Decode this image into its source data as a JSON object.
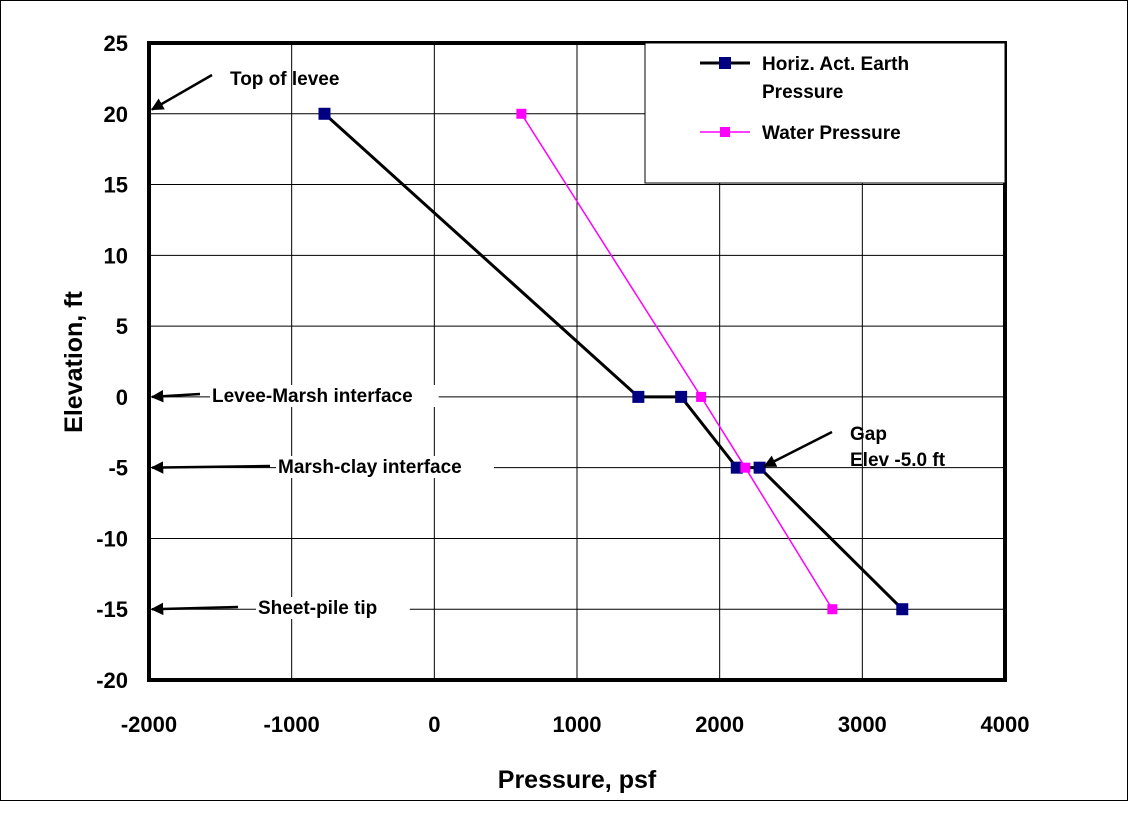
{
  "chart_data": {
    "type": "line",
    "xlabel": "Pressure, psf",
    "ylabel": "Elevation, ft",
    "xlim": [
      -2000,
      4000
    ],
    "ylim": [
      -20,
      25
    ],
    "xticks": [
      -2000,
      -1000,
      0,
      1000,
      2000,
      3000,
      4000
    ],
    "yticks": [
      25,
      20,
      15,
      10,
      5,
      0,
      -5,
      -10,
      -15,
      -20
    ],
    "grid": true,
    "legend_position": "top-right",
    "series": [
      {
        "name": "Horiz. Act. Earth Pressure",
        "name_lines": [
          "Horiz. Act. Earth",
          "Pressure"
        ],
        "color": "#000000",
        "marker_color": "#000080",
        "x": [
          -770,
          1430,
          1730,
          2120,
          2280,
          3280
        ],
        "y": [
          20,
          0,
          0,
          -5,
          -5,
          -15
        ]
      },
      {
        "name": "Water Pressure",
        "name_lines": [
          "Water Pressure"
        ],
        "color": "#ff00ff",
        "marker_color": "#ff00ff",
        "x": [
          610,
          1870,
          2180,
          2790
        ],
        "y": [
          20,
          0,
          -5,
          -15
        ]
      }
    ],
    "annotations": [
      {
        "id": "top-of-levee",
        "lines": [
          "Top of levee"
        ],
        "arrow_to_x": -2000,
        "arrow_to_y": 20.3
      },
      {
        "id": "levee-marsh",
        "lines": [
          "Levee-Marsh interface"
        ],
        "arrow_to_x": -2000,
        "arrow_to_y": 0
      },
      {
        "id": "marsh-clay",
        "lines": [
          "Marsh-clay interface"
        ],
        "arrow_to_x": -2000,
        "arrow_to_y": -5
      },
      {
        "id": "sheet-pile-tip",
        "lines": [
          "Sheet-pile tip"
        ],
        "arrow_to_x": -2000,
        "arrow_to_y": -15
      },
      {
        "id": "gap",
        "lines": [
          "Gap",
          "Elev -5.0 ft"
        ],
        "arrow_to_x": 2300,
        "arrow_to_y": -4.9
      }
    ]
  }
}
